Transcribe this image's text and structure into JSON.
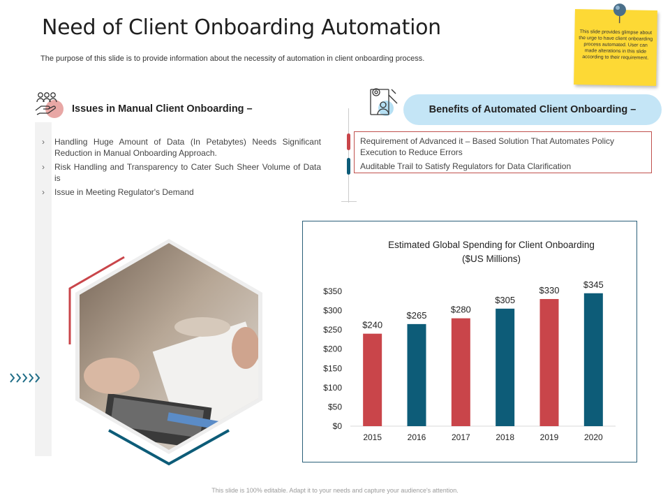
{
  "slide": {
    "title": "Need of Client Onboarding Automation",
    "subtitle": "The purpose of this slide is to provide information about the necessity of automation in client onboarding process.",
    "footer": "This slide is 100% editable. Adapt it to your needs and capture your audience's attention."
  },
  "sticky_note": {
    "text": "This slide provides glimpse about the urge to have client onboarding process automated. User can made alterations in this slide according to their requirement."
  },
  "issues": {
    "heading": "Issues in Manual Client Onboarding –",
    "items": [
      "Handling Huge Amount of Data (In Petabytes) Needs Significant Reduction in Manual Onboarding Approach.",
      "Risk Handling and Transparency to Cater Such Sheer Volume of Data is",
      "Issue in Meeting Regulator's Demand"
    ],
    "bullet_glyph": "›"
  },
  "benefits": {
    "heading": "Benefits of Automated Client Onboarding –",
    "items": [
      "Requirement of Advanced it – Based Solution That Automates Policy Execution to Reduce Errors",
      "Auditable Trail to Satisfy Regulators for Data Clarification"
    ]
  },
  "decor": {
    "chevrons": "›››››"
  },
  "colors": {
    "red": "#c9454a",
    "teal": "#0d5c78",
    "sticky": "#fdd935",
    "pill": "#c4e5f6"
  },
  "chart_data": {
    "type": "bar",
    "title_lines": [
      "Estimated Global Spending for Client Onboarding",
      "($US Millions)"
    ],
    "categories": [
      "2015",
      "2016",
      "2017",
      "2018",
      "2019",
      "2020"
    ],
    "values": [
      240,
      265,
      280,
      305,
      330,
      345
    ],
    "value_labels": [
      "$240",
      "$265",
      "$280",
      "$305",
      "$330",
      "$345"
    ],
    "bar_colors": [
      "#c9454a",
      "#0d5c78",
      "#c9454a",
      "#0d5c78",
      "#c9454a",
      "#0d5c78"
    ],
    "y_ticks": [
      "$0",
      "$50",
      "$100",
      "$150",
      "$200",
      "$250",
      "$300",
      "$350"
    ],
    "ylim": [
      0,
      350
    ],
    "grid": false,
    "legend": "none"
  }
}
